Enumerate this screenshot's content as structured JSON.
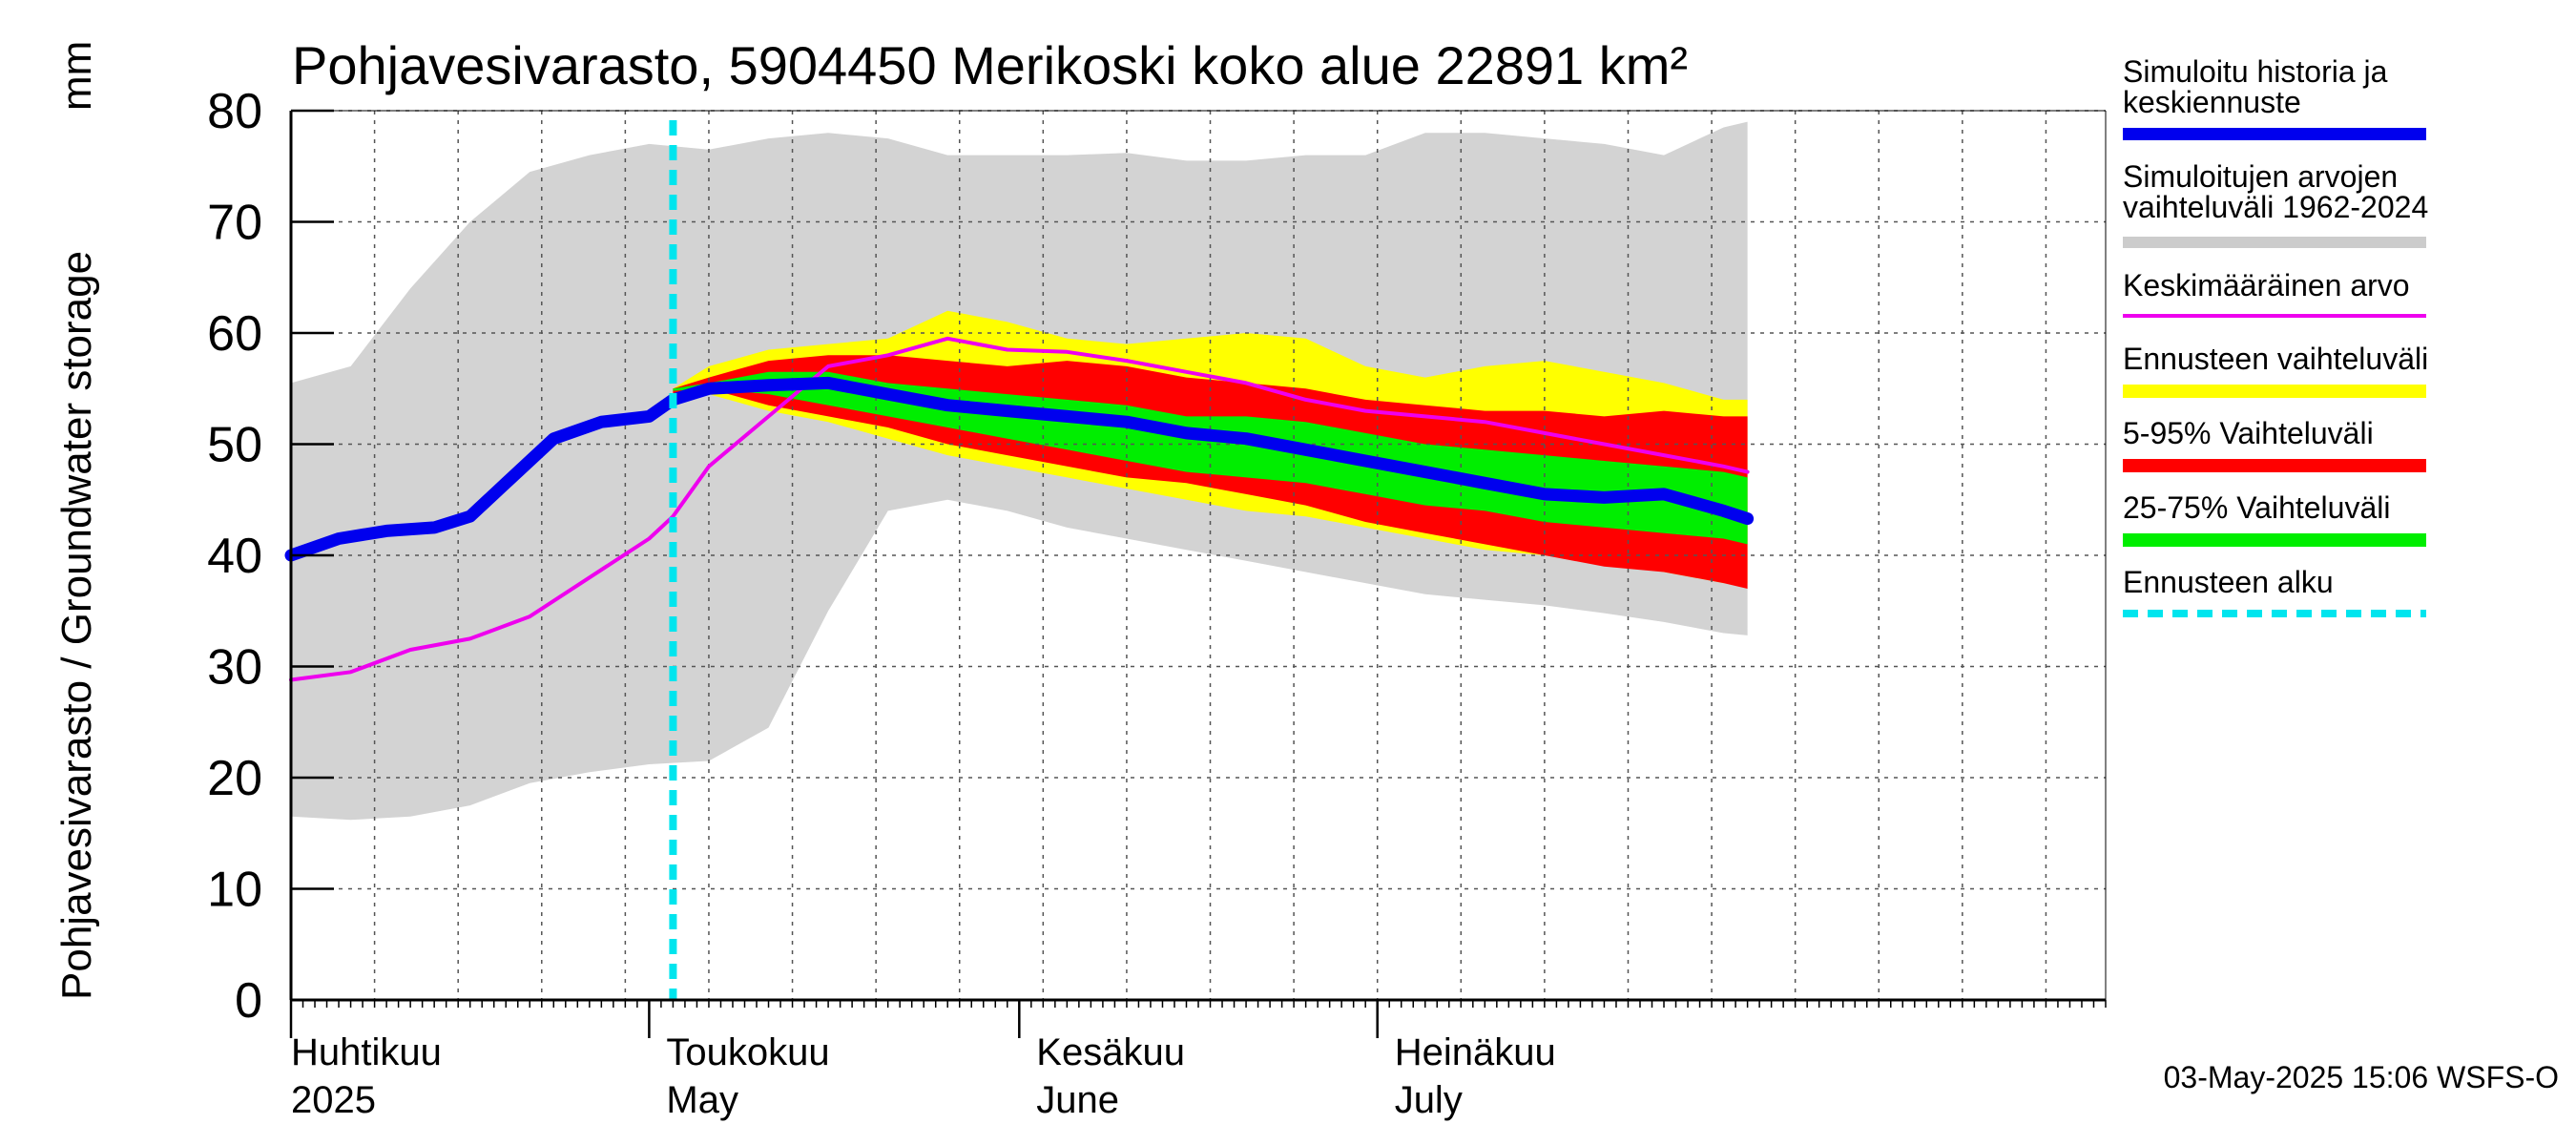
{
  "chart_data": {
    "type": "area",
    "title": "Pohjavesivarasto, 5904450 Merikoski koko alue 22891 km²",
    "ylabel": "Pohjavesivarasto / Groundwater storage",
    "yunit": "mm",
    "ylim": [
      0,
      80
    ],
    "yticks": [
      0,
      10,
      20,
      30,
      40,
      50,
      60,
      70,
      80
    ],
    "xlim_days": [
      -30,
      122
    ],
    "x_unit": "days relative to 2025-05-01",
    "months": [
      {
        "fi": "Huhtikuu",
        "en": "2025",
        "day": -30
      },
      {
        "fi": "Toukokuu",
        "en": "May",
        "day": 0
      },
      {
        "fi": "Kesäkuu",
        "en": "June",
        "day": 31
      },
      {
        "fi": "Heinäkuu",
        "en": "July",
        "day": 61
      }
    ],
    "forecast_start_day": 2,
    "grid": true,
    "legend": [
      {
        "label": "Simuloitu historia ja\nkeskiennuste",
        "color": "#0000ee"
      },
      {
        "label": "Simuloitujen arvojen\nvaihteluväli 1962-2024",
        "color": "#cccccc"
      },
      {
        "label": "Keskimääräinen arvo",
        "color": "#ee00ee"
      },
      {
        "label": "Ennusteen vaihteluväli",
        "color": "#ffff00"
      },
      {
        "label": "5-95% Vaihteluväli",
        "color": "#ff0000"
      },
      {
        "label": "25-75% Vaihteluväli",
        "color": "#00ee00"
      },
      {
        "label": "Ennusteen alku",
        "color": "#00e5ee"
      }
    ],
    "history_band": {
      "x": [
        -30,
        -25,
        -20,
        -15,
        -10,
        -5,
        0,
        5,
        10,
        15,
        20,
        25,
        30,
        35,
        40,
        45,
        50,
        55,
        60,
        65,
        70,
        75,
        80,
        85,
        90,
        92
      ],
      "low": [
        16.5,
        16.2,
        16.5,
        17.5,
        19.5,
        20.5,
        21.2,
        21.5,
        24.5,
        35.0,
        44.0,
        45.0,
        44.0,
        42.5,
        41.5,
        40.5,
        39.5,
        38.5,
        37.5,
        36.5,
        36.0,
        35.5,
        34.8,
        34.0,
        33.0,
        32.8
      ],
      "high": [
        55.5,
        57.0,
        64.0,
        70.0,
        74.5,
        76.0,
        77.0,
        76.5,
        77.5,
        78.0,
        77.5,
        76.0,
        76.0,
        76.0,
        76.2,
        75.5,
        75.5,
        76.0,
        76.0,
        78.0,
        78.0,
        77.5,
        77.0,
        76.0,
        78.5,
        79.0
      ]
    },
    "forecast_band": {
      "x": [
        2,
        5,
        10,
        15,
        20,
        25,
        30,
        35,
        40,
        45,
        50,
        55,
        60,
        65,
        70,
        75,
        80,
        85,
        90,
        92
      ],
      "low": [
        54.0,
        54.5,
        53.0,
        52.0,
        50.5,
        49.0,
        48.0,
        47.0,
        46.0,
        45.0,
        44.0,
        43.5,
        42.5,
        41.5,
        40.5,
        40.0,
        39.5,
        38.5,
        37.5,
        37.5
      ],
      "high": [
        55.0,
        57.0,
        58.5,
        59.0,
        59.5,
        62.0,
        61.0,
        59.5,
        59.0,
        59.5,
        60.0,
        59.5,
        57.0,
        56.0,
        57.0,
        57.5,
        56.5,
        55.5,
        54.0,
        54.0
      ]
    },
    "p5_95_band": {
      "x": [
        2,
        5,
        10,
        15,
        20,
        25,
        30,
        35,
        40,
        45,
        50,
        55,
        60,
        65,
        70,
        75,
        80,
        85,
        90,
        92
      ],
      "low": [
        54.5,
        55.0,
        53.5,
        52.5,
        51.5,
        50.0,
        49.0,
        48.0,
        47.0,
        46.5,
        45.5,
        44.5,
        43.0,
        42.0,
        41.0,
        40.0,
        39.0,
        38.5,
        37.5,
        37.0
      ],
      "high": [
        55.0,
        56.0,
        57.5,
        58.0,
        58.0,
        57.5,
        57.0,
        57.5,
        57.0,
        56.0,
        55.5,
        55.0,
        54.0,
        53.5,
        53.0,
        53.0,
        52.5,
        53.0,
        52.5,
        52.5
      ]
    },
    "p25_75_band": {
      "x": [
        2,
        5,
        10,
        15,
        20,
        25,
        30,
        35,
        40,
        45,
        50,
        55,
        60,
        65,
        70,
        75,
        80,
        85,
        90,
        92
      ],
      "low": [
        54.8,
        55.0,
        54.5,
        53.5,
        52.5,
        51.5,
        50.5,
        49.5,
        48.5,
        47.5,
        47.0,
        46.5,
        45.5,
        44.5,
        44.0,
        43.0,
        42.5,
        42.0,
        41.5,
        41.0
      ],
      "high": [
        55.0,
        55.5,
        56.5,
        56.5,
        55.5,
        55.0,
        54.5,
        54.0,
        53.5,
        52.5,
        52.5,
        52.0,
        51.0,
        50.0,
        49.5,
        49.0,
        48.5,
        48.0,
        47.5,
        47.0
      ]
    },
    "median_series": {
      "name": "Simuloitu historia ja keskiennuste",
      "x": [
        -30,
        -26,
        -22,
        -18,
        -15,
        -12,
        -8,
        -4,
        0,
        2,
        5,
        10,
        15,
        20,
        25,
        30,
        35,
        40,
        45,
        50,
        55,
        60,
        65,
        70,
        75,
        80,
        85,
        90,
        92
      ],
      "y": [
        40.0,
        41.5,
        42.2,
        42.5,
        43.5,
        46.5,
        50.5,
        52.0,
        52.5,
        54.0,
        55.0,
        55.3,
        55.5,
        54.5,
        53.5,
        53.0,
        52.5,
        52.0,
        51.0,
        50.5,
        49.5,
        48.5,
        47.5,
        46.5,
        45.5,
        45.2,
        45.5,
        44.0,
        43.3
      ]
    },
    "mean_series": {
      "name": "Keskimääräinen arvo",
      "x": [
        -30,
        -25,
        -20,
        -15,
        -10,
        -5,
        0,
        2,
        5,
        10,
        15,
        20,
        25,
        30,
        35,
        40,
        45,
        50,
        55,
        60,
        65,
        70,
        75,
        80,
        85,
        90,
        92
      ],
      "y": [
        28.8,
        29.5,
        31.5,
        32.5,
        34.5,
        38.0,
        41.5,
        43.5,
        48.0,
        52.5,
        57.0,
        58.0,
        59.5,
        58.5,
        58.3,
        57.5,
        56.5,
        55.5,
        54.0,
        53.0,
        52.5,
        52.0,
        51.0,
        50.0,
        49.0,
        48.0,
        47.5
      ]
    }
  },
  "footer": {
    "timestamp": "03-May-2025 15:06 WSFS-O"
  }
}
